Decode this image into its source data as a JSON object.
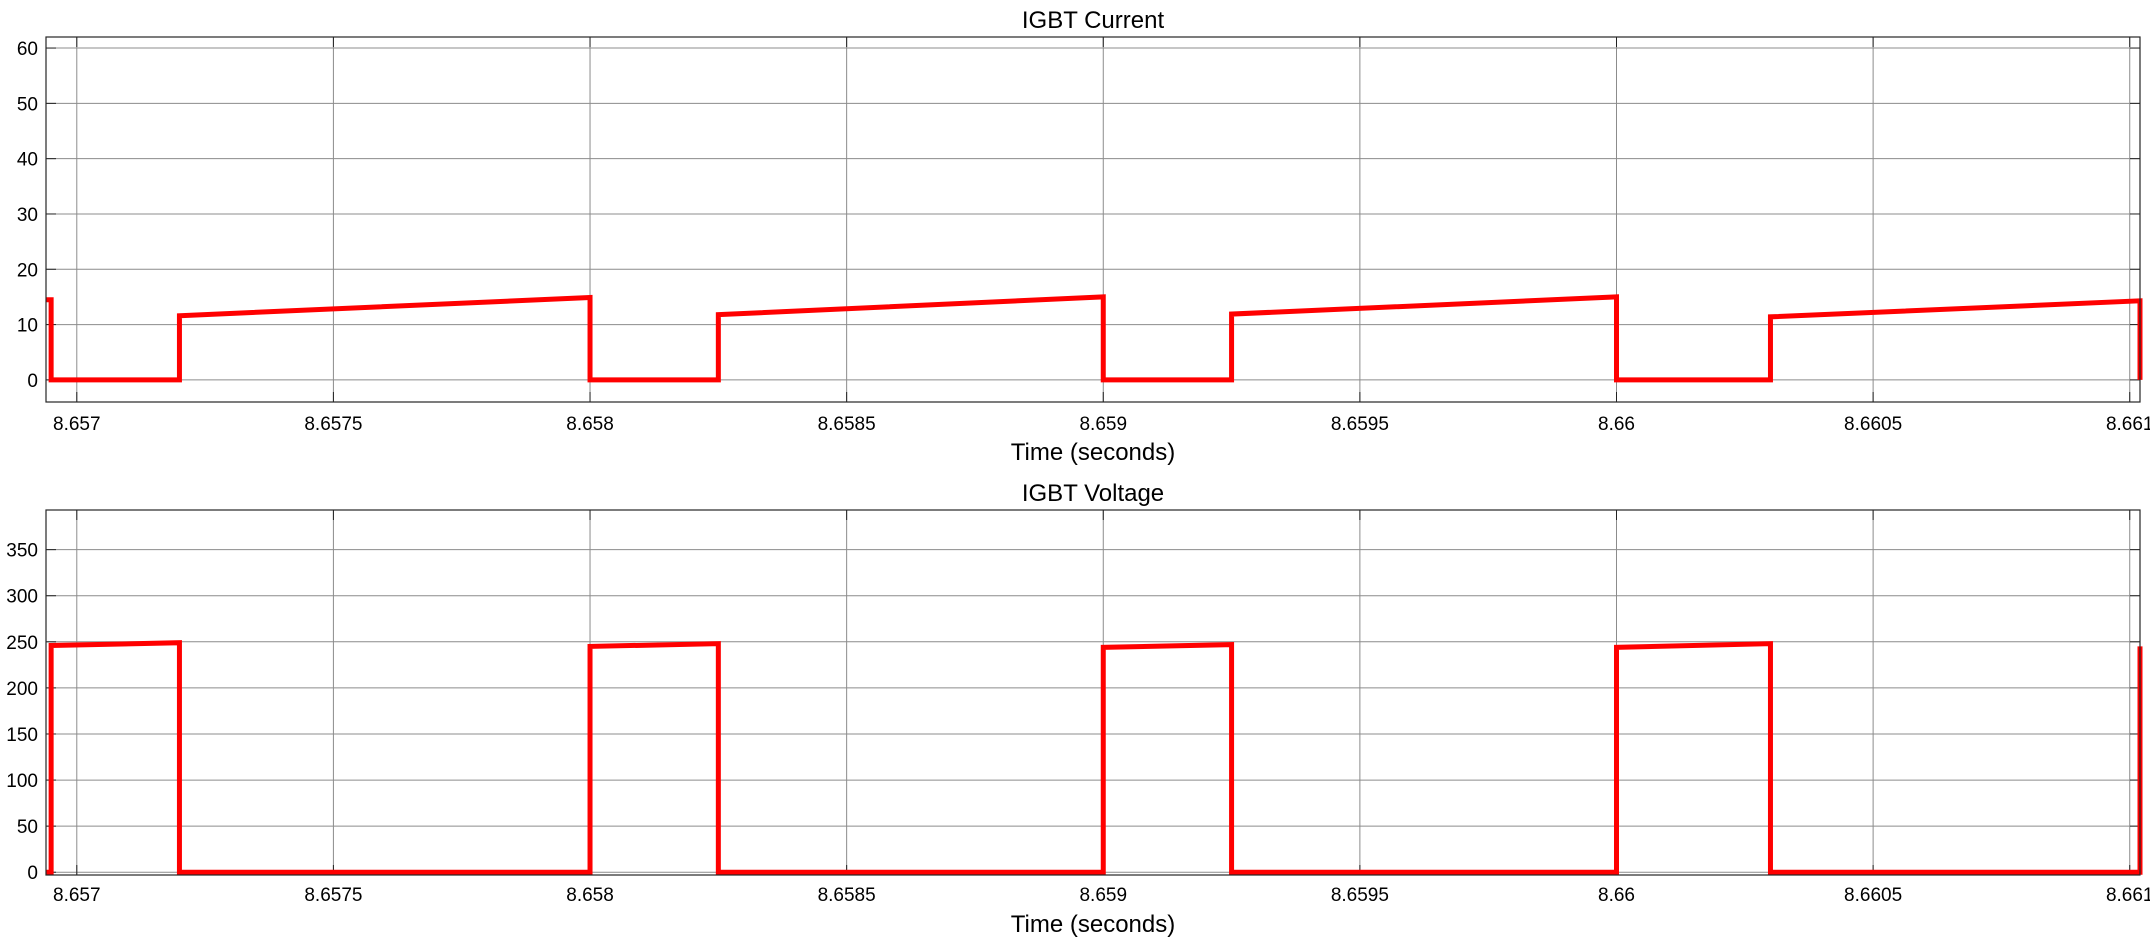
{
  "chart_data": [
    {
      "type": "line",
      "title": "IGBT Current",
      "xlabel": "Time (seconds)",
      "ylabel": "",
      "xlim": [
        8.65694,
        8.66102
      ],
      "ylim": [
        -4,
        62
      ],
      "grid": true,
      "xticks": [
        8.657,
        8.6575,
        8.658,
        8.6585,
        8.659,
        8.6595,
        8.66,
        8.6605,
        8.661
      ],
      "xtick_labels": [
        "8.657",
        "8.6575",
        "8.658",
        "8.6585",
        "8.659",
        "8.6595",
        "8.66",
        "8.6605",
        "8.661"
      ],
      "yticks": [
        0,
        10,
        20,
        30,
        40,
        50,
        60
      ],
      "ytick_labels": [
        "0",
        "10",
        "20",
        "30",
        "40",
        "50",
        "60"
      ],
      "series": [
        {
          "color": "#ff0000",
          "x": [
            8.65694,
            8.65695,
            8.65695,
            8.6572,
            8.6572,
            8.658,
            8.658,
            8.65825,
            8.65825,
            8.659,
            8.659,
            8.65925,
            8.65925,
            8.66,
            8.66,
            8.6603,
            8.6603,
            8.66102,
            8.66102
          ],
          "y": [
            14.5,
            14.5,
            0,
            0,
            11.6,
            14.9,
            0,
            0,
            11.8,
            15.0,
            0,
            0,
            11.9,
            15.0,
            0,
            0,
            11.4,
            14.3,
            0
          ]
        }
      ]
    },
    {
      "type": "line",
      "title": "IGBT Voltage",
      "xlabel": "Time (seconds)",
      "ylabel": "",
      "xlim": [
        8.65694,
        8.66102
      ],
      "ylim": [
        -3,
        393
      ],
      "grid": true,
      "xticks": [
        8.657,
        8.6575,
        8.658,
        8.6585,
        8.659,
        8.6595,
        8.66,
        8.6605,
        8.661
      ],
      "xtick_labels": [
        "8.657",
        "8.6575",
        "8.658",
        "8.6585",
        "8.659",
        "8.6595",
        "8.66",
        "8.6605",
        "8.661"
      ],
      "yticks": [
        0,
        50,
        100,
        150,
        200,
        250,
        300,
        350
      ],
      "ytick_labels": [
        "0",
        "50",
        "100",
        "150",
        "200",
        "250",
        "300",
        "350"
      ],
      "series": [
        {
          "color": "#ff0000",
          "x": [
            8.65694,
            8.65695,
            8.65695,
            8.6572,
            8.6572,
            8.658,
            8.658,
            8.65825,
            8.65825,
            8.659,
            8.659,
            8.65925,
            8.65925,
            8.66,
            8.66,
            8.6603,
            8.6603,
            8.66102,
            8.66102
          ],
          "y": [
            0,
            0,
            246,
            249,
            0,
            0,
            245,
            248,
            0,
            0,
            244,
            247,
            0,
            0,
            244,
            248,
            0,
            0,
            245
          ]
        }
      ]
    }
  ]
}
